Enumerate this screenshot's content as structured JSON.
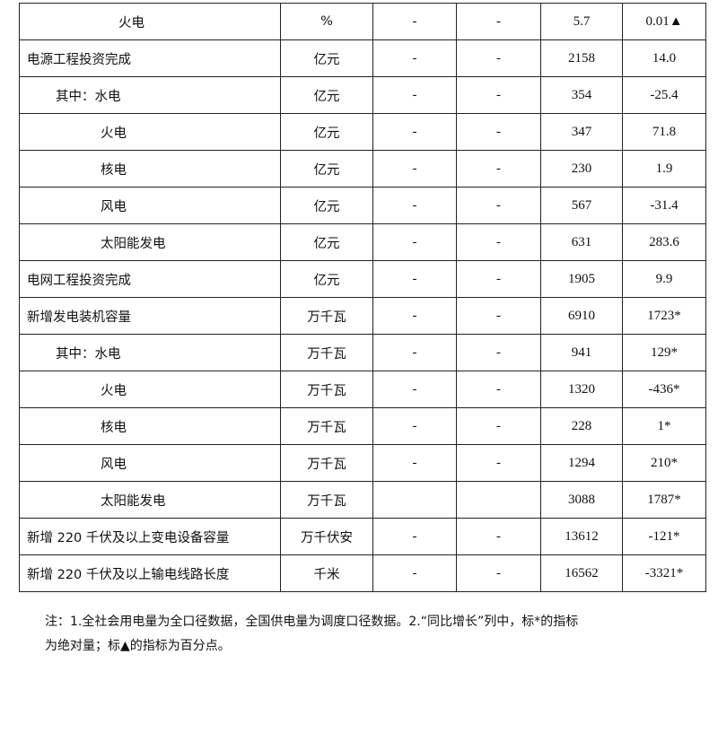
{
  "rows": [
    {
      "label": "火电",
      "level": 2,
      "unit": "%",
      "c3": "-",
      "c4": "-",
      "value": "5.7",
      "growth": "0.01▲"
    },
    {
      "label": "电源工程投资完成",
      "level": 0,
      "unit": "亿元",
      "c3": "-",
      "c4": "-",
      "value": "2158",
      "growth": "14.0"
    },
    {
      "label": "其中：水电",
      "level": 1,
      "unit": "亿元",
      "c3": "-",
      "c4": "-",
      "value": "354",
      "growth": "-25.4"
    },
    {
      "label": "火电",
      "level": 2,
      "unit": "亿元",
      "c3": "-",
      "c4": "-",
      "value": "347",
      "growth": "71.8"
    },
    {
      "label": "核电",
      "level": 2,
      "unit": "亿元",
      "c3": "-",
      "c4": "-",
      "value": "230",
      "growth": "1.9"
    },
    {
      "label": "风电",
      "level": 2,
      "unit": "亿元",
      "c3": "-",
      "c4": "-",
      "value": "567",
      "growth": "-31.4"
    },
    {
      "label": "太阳能发电",
      "level": 2,
      "unit": "亿元",
      "c3": "-",
      "c4": "-",
      "value": "631",
      "growth": "283.6"
    },
    {
      "label": "电网工程投资完成",
      "level": 0,
      "unit": "亿元",
      "c3": "-",
      "c4": "-",
      "value": "1905",
      "growth": "9.9"
    },
    {
      "label": "新增发电装机容量",
      "level": 0,
      "unit": "万千瓦",
      "c3": "-",
      "c4": "-",
      "value": "6910",
      "growth": "1723*"
    },
    {
      "label": "其中：水电",
      "level": 1,
      "unit": "万千瓦",
      "c3": "-",
      "c4": "-",
      "value": "941",
      "growth": "129*"
    },
    {
      "label": "火电",
      "level": 2,
      "unit": "万千瓦",
      "c3": "-",
      "c4": "-",
      "value": "1320",
      "growth": "-436*"
    },
    {
      "label": "核电",
      "level": 2,
      "unit": "万千瓦",
      "c3": "-",
      "c4": "-",
      "value": "228",
      "growth": "1*"
    },
    {
      "label": "风电",
      "level": 2,
      "unit": "万千瓦",
      "c3": "-",
      "c4": "-",
      "value": "1294",
      "growth": "210*"
    },
    {
      "label": "太阳能发电",
      "level": 2,
      "unit": "万千瓦",
      "c3": "",
      "c4": "",
      "value": "3088",
      "growth": "1787*"
    },
    {
      "label": "新增 220 千伏及以上变电设备容量",
      "level": 0,
      "unit": "万千伏安",
      "c3": "-",
      "c4": "-",
      "value": "13612",
      "growth": "-121*"
    },
    {
      "label": "新增 220 千伏及以上输电线路长度",
      "level": 0,
      "unit": "千米",
      "c3": "-",
      "c4": "-",
      "value": "16562",
      "growth": "-3321*"
    }
  ],
  "note": {
    "line1": "注：1.全社会用电量为全口径数据，全国供电量为调度口径数据。2.“同比增长”列中，标*的指标",
    "line2": "为绝对量；标▲的指标为百分点。"
  }
}
